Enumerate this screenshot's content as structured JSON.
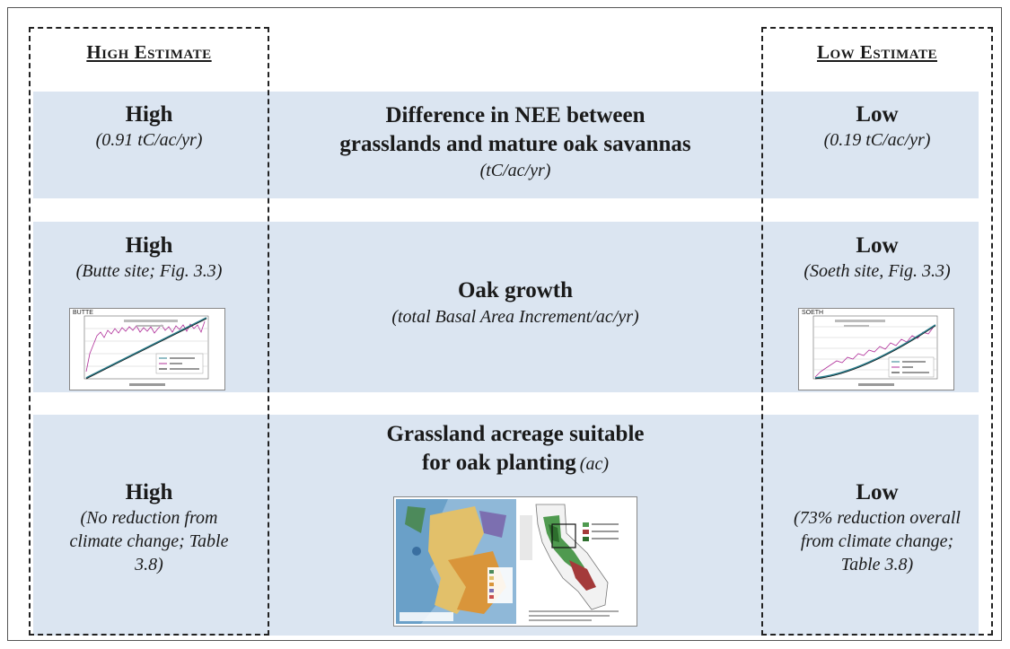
{
  "columns": {
    "high_title": "High Estimate",
    "low_title": "Low Estimate"
  },
  "rows": [
    {
      "high_label": "High",
      "high_sub": "(0.91 tC/ac/yr)",
      "middle_title_line1": "Difference in NEE between",
      "middle_title_line2": "grasslands and mature oak savannas",
      "middle_sub": "(tC/ac/yr)",
      "low_label": "Low",
      "low_sub": "(0.19 tC/ac/yr)"
    },
    {
      "high_label": "High",
      "high_sub": "(Butte site; Fig. 3.3)",
      "high_chart_title": "BUTTE",
      "middle_title": "Oak growth",
      "middle_sub": "(total Basal Area Increment/ac/yr)",
      "low_label": "Low",
      "low_sub": "(Soeth site, Fig. 3.3)",
      "low_chart_title": "SOETH"
    },
    {
      "high_label": "High",
      "high_sub_line1": "(No reduction from",
      "high_sub_line2": "climate change; Table",
      "high_sub_line3": "3.8)",
      "middle_title_line1": "Grassland acreage suitable",
      "middle_title_line2": "for oak planting",
      "middle_title_unit": "(ac)",
      "low_label": "Low",
      "low_sub_line1": "(73% reduction overall",
      "low_sub_line2": "from climate change;",
      "low_sub_line3": "Table 3.8)"
    }
  ],
  "colors": {
    "band": "#dbe5f1",
    "series_total": "#2a7d8c",
    "series_bai": "#b0309a",
    "series_fit": "#111111"
  }
}
